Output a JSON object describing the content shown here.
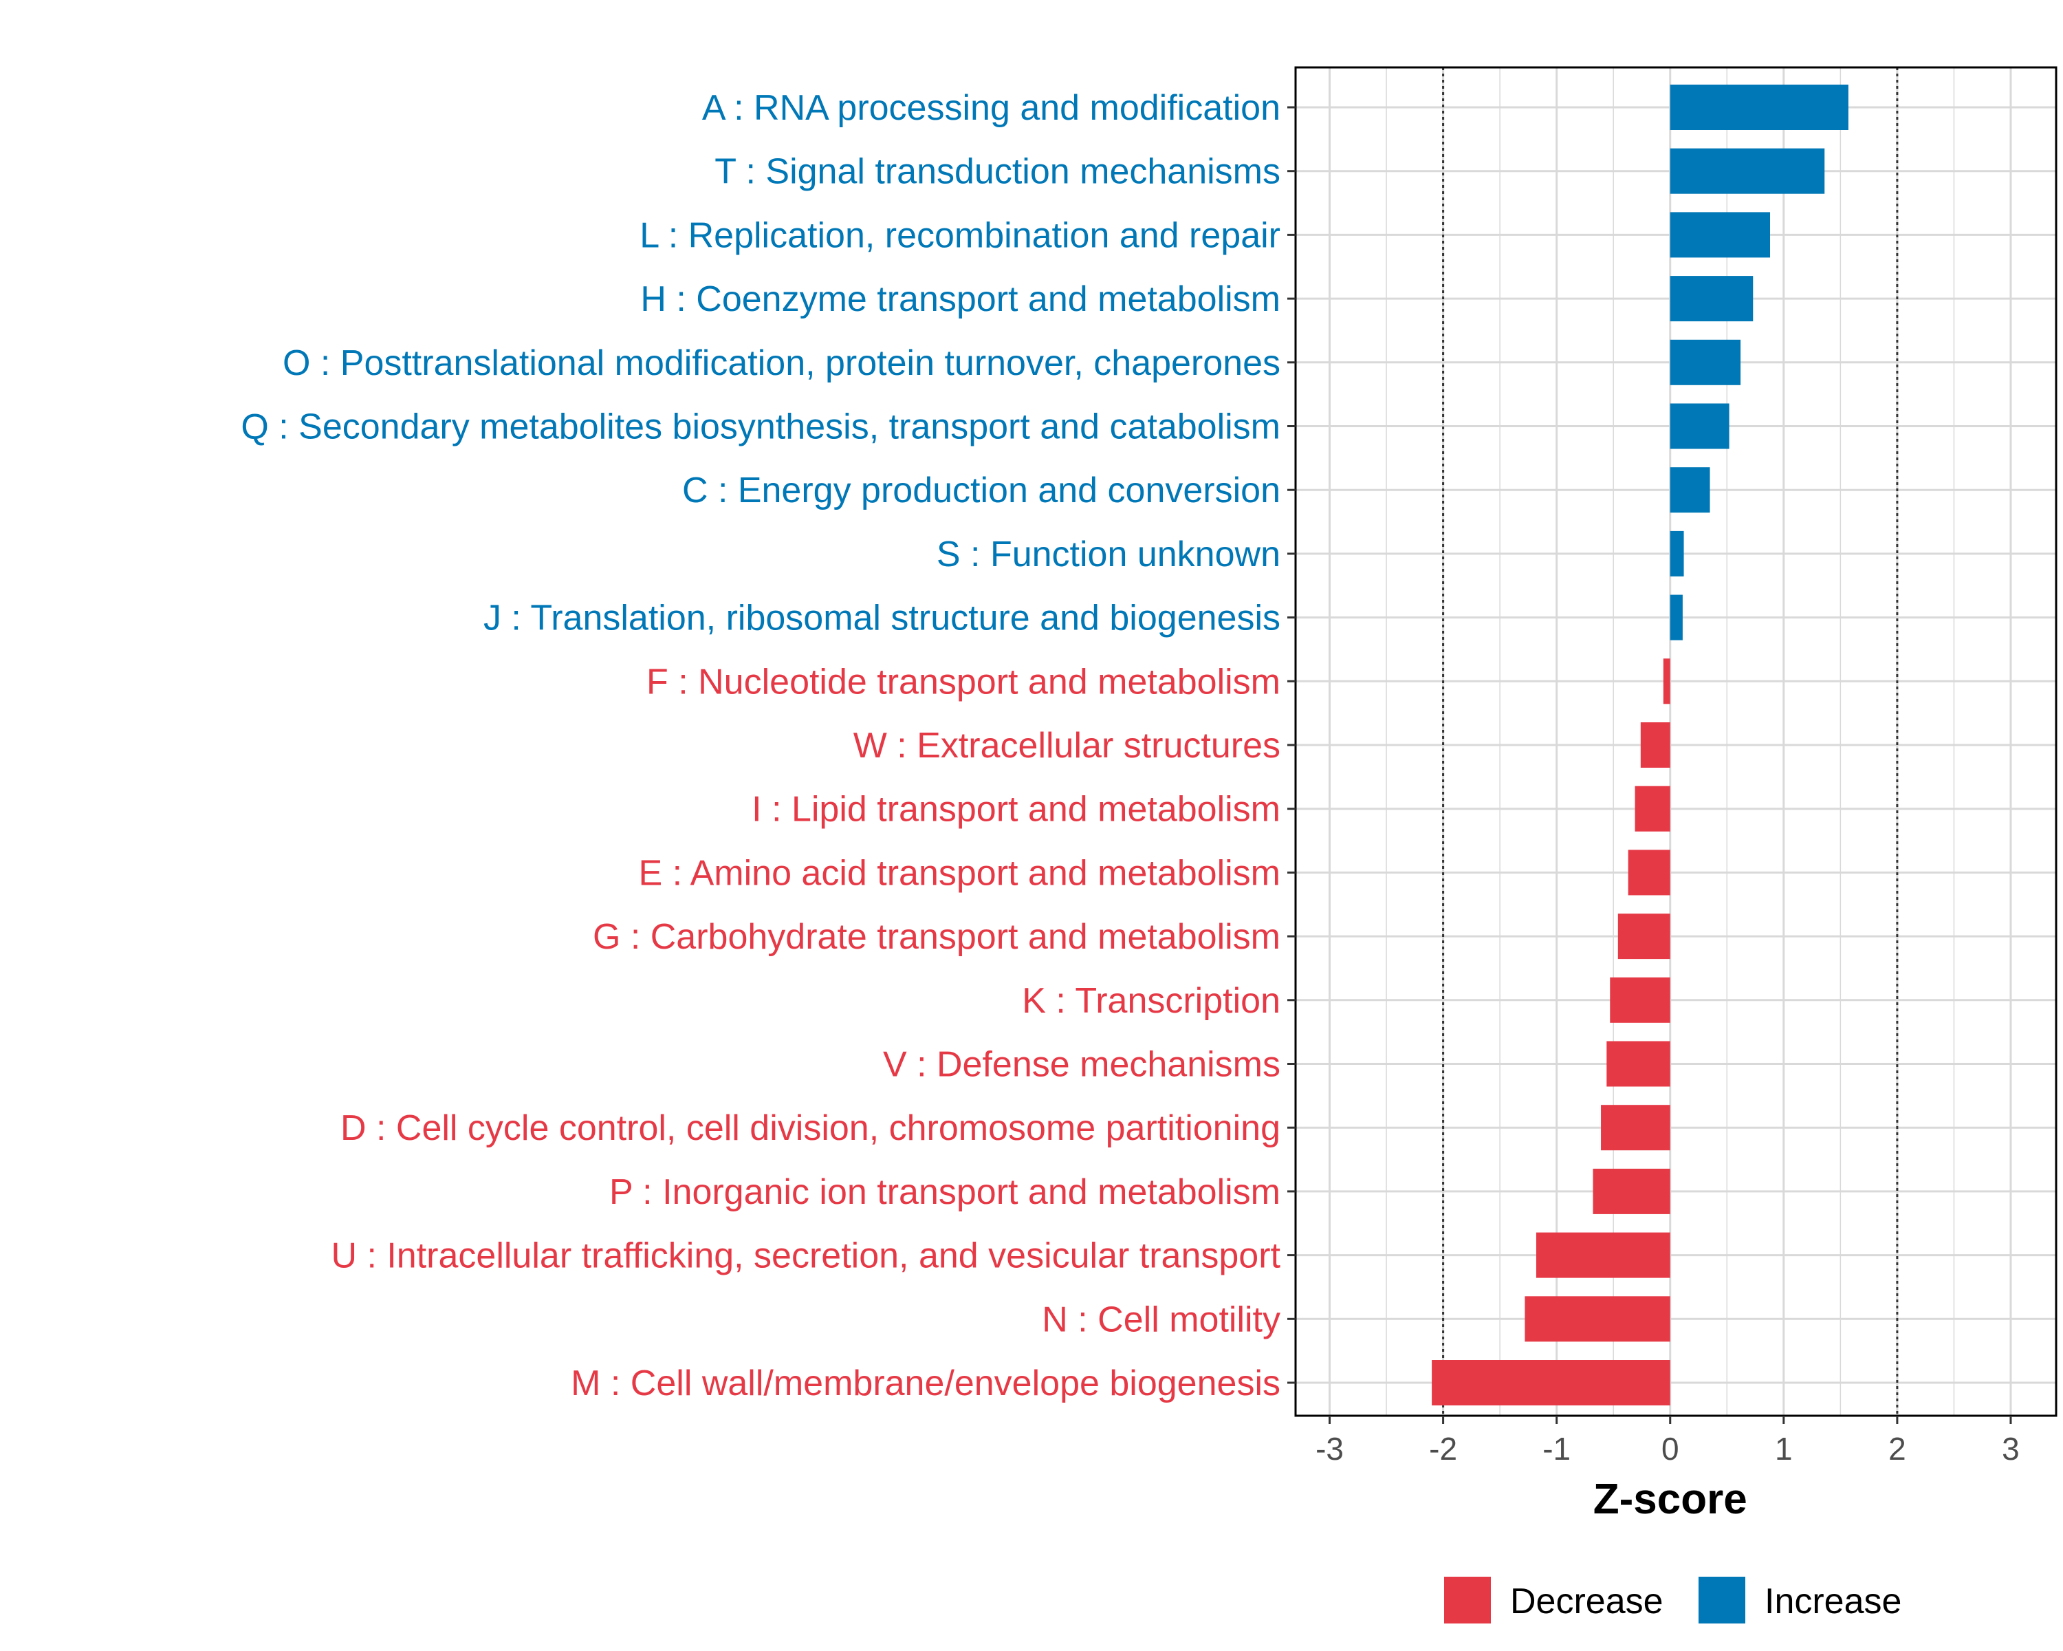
{
  "chart_data": {
    "type": "bar",
    "orientation": "horizontal",
    "xlabel": "Z-score",
    "xlim": [
      -3.3,
      3.4
    ],
    "xticks": [
      -3,
      -2,
      -1,
      0,
      1,
      2,
      3
    ],
    "xtick_labels": [
      "-3",
      "-2",
      "-1",
      "0",
      "1",
      "2",
      "3"
    ],
    "reference_lines": [
      -2,
      2
    ],
    "grid": true,
    "categories": [
      "A : RNA processing and modification",
      "T : Signal transduction mechanisms",
      "L : Replication, recombination and repair",
      "H : Coenzyme transport and metabolism",
      "O : Posttranslational modification, protein turnover, chaperones",
      "Q : Secondary metabolites biosynthesis, transport and catabolism",
      "C : Energy production and conversion",
      "S : Function unknown",
      "J : Translation, ribosomal structure and biogenesis",
      "F : Nucleotide transport and metabolism",
      "W : Extracellular structures",
      "I : Lipid transport and metabolism",
      "E : Amino acid transport and metabolism",
      "G : Carbohydrate transport and metabolism",
      "K : Transcription",
      "V : Defense mechanisms",
      "D : Cell cycle control, cell division, chromosome partitioning",
      "P : Inorganic ion transport and metabolism",
      "U : Intracellular trafficking, secretion, and vesicular transport",
      "N : Cell motility",
      "M : Cell wall/membrane/envelope biogenesis"
    ],
    "values": [
      1.57,
      1.36,
      0.88,
      0.73,
      0.62,
      0.52,
      0.35,
      0.12,
      0.11,
      -0.06,
      -0.26,
      -0.31,
      -0.37,
      -0.46,
      -0.53,
      -0.56,
      -0.61,
      -0.68,
      -1.18,
      -1.28,
      -2.1
    ],
    "groups": [
      "Increase",
      "Increase",
      "Increase",
      "Increase",
      "Increase",
      "Increase",
      "Increase",
      "Increase",
      "Increase",
      "Decrease",
      "Decrease",
      "Decrease",
      "Decrease",
      "Decrease",
      "Decrease",
      "Decrease",
      "Decrease",
      "Decrease",
      "Decrease",
      "Decrease",
      "Decrease"
    ],
    "legend": {
      "position": "bottom",
      "items": [
        {
          "label": "Decrease",
          "color": "#E63946"
        },
        {
          "label": "Increase",
          "color": "#0077B6"
        }
      ]
    },
    "colors": {
      "Increase": "#0077B6",
      "Decrease": "#E63946"
    }
  }
}
